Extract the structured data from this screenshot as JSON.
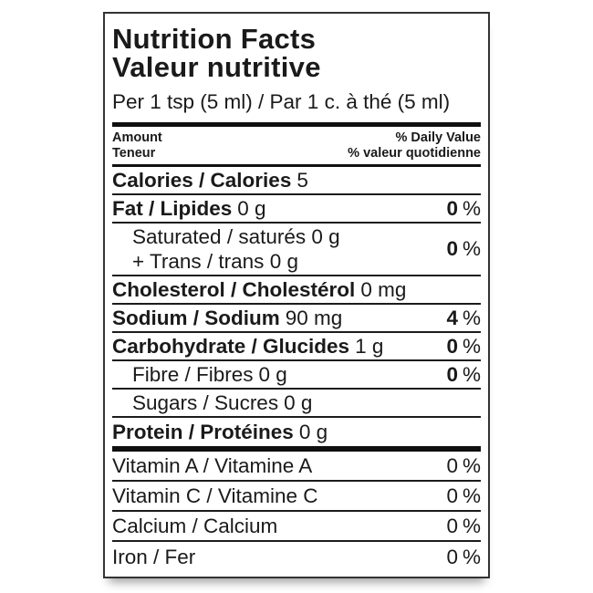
{
  "label": {
    "title_en": "Nutrition Facts",
    "title_fr": "Valeur nutritive",
    "serving": "Per 1 tsp (5 ml) / Par 1 c. à thé (5 ml)",
    "percent_sign": "%",
    "header": {
      "amount_en": "Amount",
      "amount_fr": "Teneur",
      "daily_value_en": "% Daily Value",
      "daily_value_fr": "% valeur quotidienne"
    },
    "calories": {
      "name": "Calories / Calories",
      "value": "5"
    },
    "rows": [
      {
        "name": "Fat / Lipides",
        "value": "0 g",
        "dv": "0"
      },
      {
        "line1": "Saturated / saturés 0 g",
        "line2": "+ Trans / trans 0 g",
        "dv": "0"
      },
      {
        "name": "Cholesterol / Cholestérol",
        "value": "0 mg"
      },
      {
        "name": "Sodium / Sodium",
        "value": "90 mg",
        "dv": "4"
      },
      {
        "name": "Carbohydrate / Glucides",
        "value": "1 g",
        "dv": "0"
      },
      {
        "name": "Fibre / Fibres",
        "value": "0 g",
        "dv": "0"
      },
      {
        "name": "Sugars / Sucres",
        "value": "0 g"
      },
      {
        "name": "Protein / Protéines",
        "value": "0 g"
      }
    ],
    "micronutrients": [
      {
        "name": "Vitamin A / Vitamine A",
        "dv": "0"
      },
      {
        "name": "Vitamin C / Vitamine C",
        "dv": "0"
      },
      {
        "name": "Calcium / Calcium",
        "dv": "0"
      },
      {
        "name": "Iron / Fer",
        "dv": "0"
      }
    ]
  }
}
